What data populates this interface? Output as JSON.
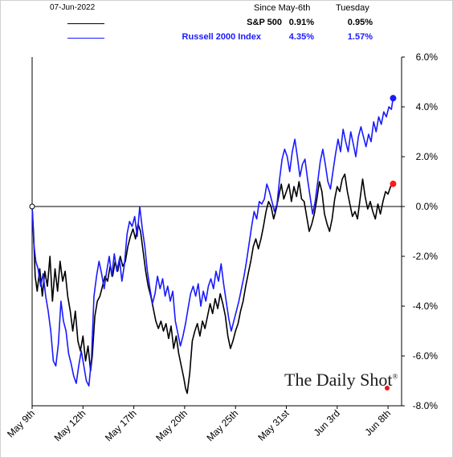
{
  "header": {
    "date": "07-Jun-2022",
    "col_since": "Since May-6th",
    "col_tuesday": "Tuesday",
    "rows": [
      {
        "name": "S&P 500",
        "since": "0.91%",
        "tuesday": "0.95%",
        "color": "#000000"
      },
      {
        "name": "Russell 2000 Index",
        "since": "4.35%",
        "tuesday": "1.57%",
        "color": "#1a1aff"
      }
    ]
  },
  "watermark": {
    "text": "The Daily Shot",
    "mark": "®"
  },
  "chart_data": {
    "type": "line",
    "y_ticks": [
      "6.0%",
      "4.0%",
      "2.0%",
      "0.0%",
      "-2.0%",
      "-4.0%",
      "-6.0%",
      "-8.0%"
    ],
    "ylim": [
      -8,
      6
    ],
    "y_axis_side": "right",
    "x_ticks": [
      "May 9th",
      "May 12th",
      "May 17th",
      "May 20th",
      "May 25th",
      "May 31st",
      "Jun 3rd",
      "Jun 8th"
    ],
    "x_tick_pos": [
      0,
      3,
      6,
      9,
      12,
      15,
      18,
      21
    ],
    "xlim": [
      0,
      21.8
    ],
    "zero_line": true,
    "series": [
      {
        "name": "S&P 500",
        "color": "#000000",
        "points": [
          [
            0.0,
            0.0
          ],
          [
            0.08,
            -1.0
          ],
          [
            0.18,
            -2.8
          ],
          [
            0.3,
            -3.4
          ],
          [
            0.45,
            -2.5
          ],
          [
            0.6,
            -3.6
          ],
          [
            0.75,
            -2.6
          ],
          [
            0.9,
            -3.2
          ],
          [
            1.05,
            -2.0
          ],
          [
            1.2,
            -3.8
          ],
          [
            1.35,
            -2.5
          ],
          [
            1.5,
            -3.4
          ],
          [
            1.65,
            -2.2
          ],
          [
            1.8,
            -3.0
          ],
          [
            1.95,
            -2.6
          ],
          [
            2.1,
            -3.6
          ],
          [
            2.25,
            -4.2
          ],
          [
            2.4,
            -5.0
          ],
          [
            2.55,
            -4.2
          ],
          [
            2.7,
            -5.4
          ],
          [
            2.85,
            -5.8
          ],
          [
            3.0,
            -5.2
          ],
          [
            3.15,
            -6.2
          ],
          [
            3.3,
            -5.6
          ],
          [
            3.45,
            -6.6
          ],
          [
            3.55,
            -6.0
          ],
          [
            3.7,
            -4.4
          ],
          [
            3.85,
            -3.8
          ],
          [
            4.0,
            -3.6
          ],
          [
            4.15,
            -3.2
          ],
          [
            4.3,
            -2.8
          ],
          [
            4.45,
            -3.0
          ],
          [
            4.6,
            -2.4
          ],
          [
            4.75,
            -2.8
          ],
          [
            4.9,
            -2.2
          ],
          [
            5.05,
            -2.6
          ],
          [
            5.2,
            -2.0
          ],
          [
            5.35,
            -2.4
          ],
          [
            5.5,
            -2.2
          ],
          [
            5.65,
            -1.6
          ],
          [
            5.8,
            -1.2
          ],
          [
            5.95,
            -0.9
          ],
          [
            6.1,
            -1.3
          ],
          [
            6.25,
            -0.7
          ],
          [
            6.4,
            -1.0
          ],
          [
            6.55,
            -1.8
          ],
          [
            6.7,
            -2.6
          ],
          [
            6.85,
            -3.2
          ],
          [
            7.0,
            -3.6
          ],
          [
            7.15,
            -4.1
          ],
          [
            7.3,
            -4.6
          ],
          [
            7.45,
            -4.9
          ],
          [
            7.6,
            -4.6
          ],
          [
            7.75,
            -5.0
          ],
          [
            7.9,
            -4.7
          ],
          [
            8.05,
            -5.3
          ],
          [
            8.2,
            -4.8
          ],
          [
            8.35,
            -5.7
          ],
          [
            8.5,
            -5.2
          ],
          [
            8.65,
            -5.9
          ],
          [
            8.8,
            -6.4
          ],
          [
            8.95,
            -6.9
          ],
          [
            9.05,
            -7.3
          ],
          [
            9.15,
            -7.5
          ],
          [
            9.3,
            -6.7
          ],
          [
            9.45,
            -5.4
          ],
          [
            9.6,
            -5.0
          ],
          [
            9.75,
            -4.7
          ],
          [
            9.9,
            -5.2
          ],
          [
            10.05,
            -4.6
          ],
          [
            10.2,
            -4.9
          ],
          [
            10.35,
            -4.4
          ],
          [
            10.5,
            -3.9
          ],
          [
            10.65,
            -4.3
          ],
          [
            10.8,
            -3.7
          ],
          [
            10.95,
            -4.1
          ],
          [
            11.1,
            -3.5
          ],
          [
            11.25,
            -3.9
          ],
          [
            11.4,
            -4.4
          ],
          [
            11.55,
            -5.2
          ],
          [
            11.7,
            -5.7
          ],
          [
            11.85,
            -5.4
          ],
          [
            12.0,
            -5.0
          ],
          [
            12.15,
            -4.7
          ],
          [
            12.3,
            -4.2
          ],
          [
            12.45,
            -3.8
          ],
          [
            12.6,
            -3.2
          ],
          [
            12.75,
            -2.7
          ],
          [
            12.9,
            -2.2
          ],
          [
            13.05,
            -1.6
          ],
          [
            13.2,
            -1.3
          ],
          [
            13.35,
            -1.7
          ],
          [
            13.5,
            -1.3
          ],
          [
            13.65,
            -0.8
          ],
          [
            13.8,
            -0.2
          ],
          [
            13.95,
            0.2
          ],
          [
            14.1,
            0.0
          ],
          [
            14.25,
            -0.5
          ],
          [
            14.4,
            -0.1
          ],
          [
            14.55,
            0.4
          ],
          [
            14.7,
            0.9
          ],
          [
            14.85,
            0.3
          ],
          [
            15.0,
            0.6
          ],
          [
            15.15,
            0.9
          ],
          [
            15.3,
            0.2
          ],
          [
            15.45,
            0.8
          ],
          [
            15.6,
            0.4
          ],
          [
            15.75,
            1.0
          ],
          [
            15.9,
            0.3
          ],
          [
            16.05,
            0.2
          ],
          [
            16.2,
            -0.4
          ],
          [
            16.35,
            -1.0
          ],
          [
            16.5,
            -0.7
          ],
          [
            16.65,
            -0.3
          ],
          [
            16.8,
            0.3
          ],
          [
            16.95,
            1.0
          ],
          [
            17.1,
            0.6
          ],
          [
            17.25,
            -0.3
          ],
          [
            17.4,
            -0.7
          ],
          [
            17.55,
            -1.0
          ],
          [
            17.7,
            -0.5
          ],
          [
            17.85,
            0.3
          ],
          [
            18.0,
            0.8
          ],
          [
            18.15,
            0.6
          ],
          [
            18.3,
            1.1
          ],
          [
            18.45,
            1.3
          ],
          [
            18.6,
            0.6
          ],
          [
            18.75,
            0.1
          ],
          [
            18.9,
            -0.4
          ],
          [
            19.05,
            -0.2
          ],
          [
            19.2,
            -0.5
          ],
          [
            19.35,
            0.3
          ],
          [
            19.5,
            1.1
          ],
          [
            19.65,
            0.4
          ],
          [
            19.8,
            -0.1
          ],
          [
            19.95,
            0.2
          ],
          [
            20.1,
            -0.2
          ],
          [
            20.25,
            -0.5
          ],
          [
            20.4,
            0.1
          ],
          [
            20.55,
            -0.3
          ],
          [
            20.7,
            0.2
          ],
          [
            20.85,
            0.6
          ],
          [
            21.0,
            0.5
          ],
          [
            21.15,
            0.8
          ],
          [
            21.3,
            0.91
          ]
        ]
      },
      {
        "name": "Russell 2000 Index",
        "color": "#1a1aff",
        "points": [
          [
            0.0,
            0.0
          ],
          [
            0.1,
            -1.5
          ],
          [
            0.22,
            -2.2
          ],
          [
            0.35,
            -2.5
          ],
          [
            0.5,
            -3.2
          ],
          [
            0.65,
            -2.7
          ],
          [
            0.8,
            -3.6
          ],
          [
            0.95,
            -4.2
          ],
          [
            1.1,
            -5.0
          ],
          [
            1.25,
            -6.2
          ],
          [
            1.4,
            -6.4
          ],
          [
            1.55,
            -5.5
          ],
          [
            1.7,
            -3.8
          ],
          [
            1.85,
            -4.6
          ],
          [
            2.0,
            -5.0
          ],
          [
            2.15,
            -5.9
          ],
          [
            2.3,
            -6.3
          ],
          [
            2.45,
            -6.8
          ],
          [
            2.6,
            -7.1
          ],
          [
            2.75,
            -6.4
          ],
          [
            2.9,
            -5.8
          ],
          [
            3.05,
            -6.4
          ],
          [
            3.2,
            -7.0
          ],
          [
            3.35,
            -7.2
          ],
          [
            3.5,
            -6.1
          ],
          [
            3.65,
            -3.6
          ],
          [
            3.8,
            -2.8
          ],
          [
            3.95,
            -2.2
          ],
          [
            4.1,
            -2.7
          ],
          [
            4.25,
            -3.3
          ],
          [
            4.4,
            -2.6
          ],
          [
            4.55,
            -2.0
          ],
          [
            4.7,
            -2.8
          ],
          [
            4.85,
            -1.9
          ],
          [
            5.0,
            -2.6
          ],
          [
            5.15,
            -2.1
          ],
          [
            5.3,
            -3.0
          ],
          [
            5.45,
            -2.3
          ],
          [
            5.6,
            -1.1
          ],
          [
            5.75,
            -0.6
          ],
          [
            5.9,
            -0.8
          ],
          [
            6.05,
            -0.4
          ],
          [
            6.2,
            -1.2
          ],
          [
            6.35,
            0.0
          ],
          [
            6.5,
            -0.9
          ],
          [
            6.65,
            -1.6
          ],
          [
            6.8,
            -2.6
          ],
          [
            6.95,
            -3.3
          ],
          [
            7.1,
            -3.9
          ],
          [
            7.25,
            -3.5
          ],
          [
            7.4,
            -2.8
          ],
          [
            7.55,
            -3.3
          ],
          [
            7.7,
            -2.9
          ],
          [
            7.85,
            -3.6
          ],
          [
            8.0,
            -3.2
          ],
          [
            8.15,
            -3.8
          ],
          [
            8.3,
            -3.4
          ],
          [
            8.45,
            -4.6
          ],
          [
            8.6,
            -5.1
          ],
          [
            8.75,
            -5.6
          ],
          [
            8.9,
            -5.2
          ],
          [
            9.05,
            -4.7
          ],
          [
            9.2,
            -4.1
          ],
          [
            9.35,
            -3.5
          ],
          [
            9.5,
            -3.2
          ],
          [
            9.65,
            -3.6
          ],
          [
            9.8,
            -3.1
          ],
          [
            9.95,
            -4.0
          ],
          [
            10.1,
            -3.4
          ],
          [
            10.25,
            -3.8
          ],
          [
            10.4,
            -3.2
          ],
          [
            10.55,
            -2.9
          ],
          [
            10.7,
            -3.3
          ],
          [
            10.85,
            -2.6
          ],
          [
            11.0,
            -3.0
          ],
          [
            11.15,
            -2.3
          ],
          [
            11.3,
            -3.1
          ],
          [
            11.45,
            -3.8
          ],
          [
            11.6,
            -4.5
          ],
          [
            11.75,
            -5.0
          ],
          [
            11.9,
            -4.6
          ],
          [
            12.05,
            -4.2
          ],
          [
            12.2,
            -3.8
          ],
          [
            12.35,
            -3.3
          ],
          [
            12.5,
            -2.8
          ],
          [
            12.65,
            -2.2
          ],
          [
            12.8,
            -1.5
          ],
          [
            12.95,
            -0.8
          ],
          [
            13.1,
            -0.2
          ],
          [
            13.25,
            -0.5
          ],
          [
            13.4,
            0.2
          ],
          [
            13.55,
            0.1
          ],
          [
            13.7,
            0.3
          ],
          [
            13.85,
            0.9
          ],
          [
            14.0,
            0.6
          ],
          [
            14.15,
            0.2
          ],
          [
            14.3,
            -0.2
          ],
          [
            14.45,
            0.1
          ],
          [
            14.6,
            1.1
          ],
          [
            14.75,
            1.9
          ],
          [
            14.9,
            2.3
          ],
          [
            15.05,
            2.0
          ],
          [
            15.2,
            1.4
          ],
          [
            15.35,
            2.2
          ],
          [
            15.5,
            2.7
          ],
          [
            15.65,
            2.0
          ],
          [
            15.8,
            1.2
          ],
          [
            15.95,
            1.7
          ],
          [
            16.1,
            1.9
          ],
          [
            16.25,
            1.1
          ],
          [
            16.4,
            0.4
          ],
          [
            16.55,
            -0.3
          ],
          [
            16.7,
            0.2
          ],
          [
            16.85,
            1.0
          ],
          [
            17.0,
            1.8
          ],
          [
            17.15,
            2.3
          ],
          [
            17.3,
            1.7
          ],
          [
            17.45,
            1.0
          ],
          [
            17.6,
            0.7
          ],
          [
            17.75,
            1.4
          ],
          [
            17.9,
            2.1
          ],
          [
            18.05,
            2.7
          ],
          [
            18.2,
            2.2
          ],
          [
            18.35,
            3.1
          ],
          [
            18.5,
            2.6
          ],
          [
            18.65,
            2.2
          ],
          [
            18.8,
            3.0
          ],
          [
            18.95,
            2.5
          ],
          [
            19.1,
            2.0
          ],
          [
            19.25,
            2.8
          ],
          [
            19.4,
            3.2
          ],
          [
            19.55,
            2.8
          ],
          [
            19.7,
            2.4
          ],
          [
            19.85,
            2.9
          ],
          [
            20.0,
            2.6
          ],
          [
            20.15,
            3.4
          ],
          [
            20.3,
            3.0
          ],
          [
            20.45,
            3.6
          ],
          [
            20.6,
            3.3
          ],
          [
            20.75,
            3.8
          ],
          [
            20.9,
            3.6
          ],
          [
            21.05,
            4.0
          ],
          [
            21.2,
            3.9
          ],
          [
            21.3,
            4.35
          ]
        ]
      }
    ]
  }
}
